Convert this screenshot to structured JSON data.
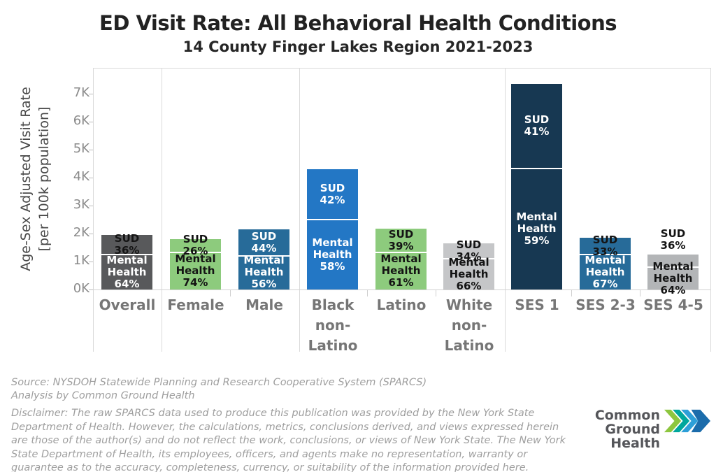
{
  "title": "ED Visit Rate: All Behavioral Health Conditions",
  "subtitle": "14 County Finger Lakes Region 2021-2023",
  "chart_data": {
    "type": "bar",
    "stacked": true,
    "unit": "ED visits per 100k population",
    "ylabel_lines": [
      "Age-Sex Adjusted Visit Rate",
      "[per 100k population]"
    ],
    "yticks": [
      "0K",
      "1K",
      "2K",
      "3K",
      "4K",
      "5K",
      "6K",
      "7K"
    ],
    "ylim": [
      0,
      7750
    ],
    "grid": false,
    "legend": "none",
    "series": [
      "Mental Health",
      "SUD"
    ],
    "segment_label_sud": "SUD",
    "segment_label_mh_lines": [
      "Mental",
      "Health"
    ],
    "groups": [
      [
        0
      ],
      [
        1,
        2
      ],
      [
        3,
        4,
        5
      ],
      [
        6,
        7,
        8
      ]
    ],
    "bars": [
      {
        "category": "Overall",
        "label_lines": [
          "Overall"
        ],
        "total": 1950,
        "mental_health_pct": 64,
        "sud_pct": 36,
        "color": "#58595b",
        "sud_text": "#141414",
        "mh_text": "#ffffff",
        "sud_label_outside": false
      },
      {
        "category": "Female",
        "label_lines": [
          "Female"
        ],
        "total": 1800,
        "mental_health_pct": 74,
        "sud_pct": 26,
        "color": "#8dcb7d",
        "sud_text": "#141414",
        "mh_text": "#141414",
        "sud_label_outside": false
      },
      {
        "category": "Male",
        "label_lines": [
          "Male"
        ],
        "total": 2150,
        "mental_health_pct": 56,
        "sud_pct": 44,
        "color": "#276b99",
        "sud_text": "#ffffff",
        "mh_text": "#ffffff",
        "sud_label_outside": false
      },
      {
        "category": "Black non-Latino",
        "label_lines": [
          "Black",
          "non-",
          "Latino"
        ],
        "total": 4300,
        "mental_health_pct": 58,
        "sud_pct": 42,
        "color": "#2377c5",
        "sud_text": "#ffffff",
        "mh_text": "#ffffff",
        "sud_label_outside": false
      },
      {
        "category": "Latino",
        "label_lines": [
          "Latino"
        ],
        "total": 2170,
        "mental_health_pct": 61,
        "sud_pct": 39,
        "color": "#8dcb7d",
        "sud_text": "#141414",
        "mh_text": "#141414",
        "sud_label_outside": false
      },
      {
        "category": "White non-Latino",
        "label_lines": [
          "White",
          "non-",
          "Latino"
        ],
        "total": 1650,
        "mental_health_pct": 66,
        "sud_pct": 34,
        "color": "#c5c6c8",
        "sud_text": "#141414",
        "mh_text": "#141414",
        "sud_label_outside": false
      },
      {
        "category": "SES 1",
        "label_lines": [
          "SES 1"
        ],
        "total": 7350,
        "mental_health_pct": 59,
        "sud_pct": 41,
        "color": "#173852",
        "sud_text": "#ffffff",
        "mh_text": "#ffffff",
        "sud_label_outside": false
      },
      {
        "category": "SES 2-3",
        "label_lines": [
          "SES 2-3"
        ],
        "total": 1850,
        "mental_health_pct": 67,
        "sud_pct": 33,
        "color": "#276b99",
        "sud_text": "#141414",
        "mh_text": "#ffffff",
        "sud_label_outside": false
      },
      {
        "category": "SES 4-5",
        "label_lines": [
          "SES 4-5"
        ],
        "total": 1250,
        "mental_health_pct": 64,
        "sud_pct": 36,
        "color": "#b3b5b7",
        "sud_text": "#141414",
        "mh_text": "#141414",
        "sud_label_outside": true
      }
    ]
  },
  "footer": {
    "source_line1": "Source: NYSDOH Statewide Planning and Research Cooperative System (SPARCS)",
    "source_line2": "Analysis by Common Ground Health",
    "disclaimer": "Disclaimer: The raw SPARCS data used to produce this publication was provided by the New York State Department of Health. However, the calculations, metrics, conclusions derived, and views expressed herein are those of the author(s) and do not reflect the work, conclusions, or views of New York State. The New York State Department of Health, its employees, officers, and agents make no representation, warranty or guarantee as to the accuracy, completeness, currency, or suitability of the information provided here."
  },
  "logo": {
    "line1": "Common Ground",
    "line2": "Health",
    "chevron_colors": [
      "#8dc63f",
      "#00a79d",
      "#2d9fd8",
      "#1b6cab"
    ]
  }
}
